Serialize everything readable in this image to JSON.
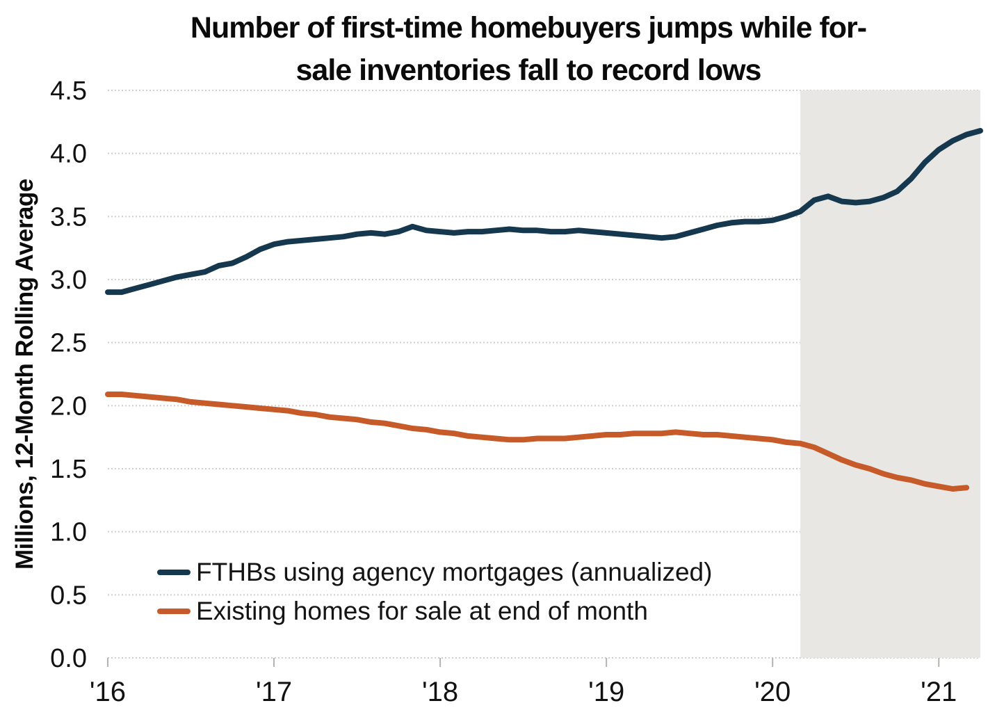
{
  "header": {
    "title_line1": "Number of first-time homebuyers jumps while for-",
    "title_line2": "sale inventories fall to record lows"
  },
  "chart_data": {
    "type": "line",
    "title": "Number of first-time homebuyers jumps while for-sale inventories fall to record lows",
    "ylabel": "Millions, 12-Month Rolling Average",
    "xlabel": "",
    "ylim": [
      0,
      4.5
    ],
    "grid": true,
    "legend_position": "inside-bottom-left",
    "x_frequency": "monthly",
    "yticks": [
      "0.0",
      "0.5",
      "1.0",
      "1.5",
      "2.0",
      "2.5",
      "3.0",
      "3.5",
      "4.0",
      "4.5"
    ],
    "xticks": [
      {
        "label": "'16",
        "month": 0
      },
      {
        "label": "'17",
        "month": 12
      },
      {
        "label": "'18",
        "month": 24
      },
      {
        "label": "'19",
        "month": 36
      },
      {
        "label": "'20",
        "month": 48
      },
      {
        "label": "'21",
        "month": 60
      }
    ],
    "recession_band": {
      "start_month": 50,
      "color": "#e9e7e4"
    },
    "series": [
      {
        "name": "FTHBs using agency mortgages (annualized)",
        "color": "#16384e",
        "start_month": 0,
        "values": [
          2.9,
          2.9,
          2.93,
          2.96,
          2.99,
          3.02,
          3.04,
          3.06,
          3.11,
          3.13,
          3.18,
          3.24,
          3.28,
          3.3,
          3.31,
          3.32,
          3.33,
          3.34,
          3.36,
          3.37,
          3.36,
          3.38,
          3.42,
          3.39,
          3.38,
          3.37,
          3.38,
          3.38,
          3.39,
          3.4,
          3.39,
          3.39,
          3.38,
          3.38,
          3.39,
          3.38,
          3.37,
          3.36,
          3.35,
          3.34,
          3.33,
          3.34,
          3.37,
          3.4,
          3.43,
          3.45,
          3.46,
          3.46,
          3.47,
          3.5,
          3.54,
          3.63,
          3.66,
          3.62,
          3.61,
          3.62,
          3.65,
          3.7,
          3.8,
          3.93,
          4.03,
          4.1,
          4.15,
          4.18
        ]
      },
      {
        "name": "Existing homes for sale at end of month",
        "color": "#c65a28",
        "start_month": 0,
        "values": [
          2.09,
          2.09,
          2.08,
          2.07,
          2.06,
          2.05,
          2.03,
          2.02,
          2.01,
          2.0,
          1.99,
          1.98,
          1.97,
          1.96,
          1.94,
          1.93,
          1.91,
          1.9,
          1.89,
          1.87,
          1.86,
          1.84,
          1.82,
          1.81,
          1.79,
          1.78,
          1.76,
          1.75,
          1.74,
          1.73,
          1.73,
          1.74,
          1.74,
          1.74,
          1.75,
          1.76,
          1.77,
          1.77,
          1.78,
          1.78,
          1.78,
          1.79,
          1.78,
          1.77,
          1.77,
          1.76,
          1.75,
          1.74,
          1.73,
          1.71,
          1.7,
          1.67,
          1.62,
          1.57,
          1.53,
          1.5,
          1.46,
          1.43,
          1.41,
          1.38,
          1.36,
          1.34,
          1.35
        ]
      }
    ]
  }
}
